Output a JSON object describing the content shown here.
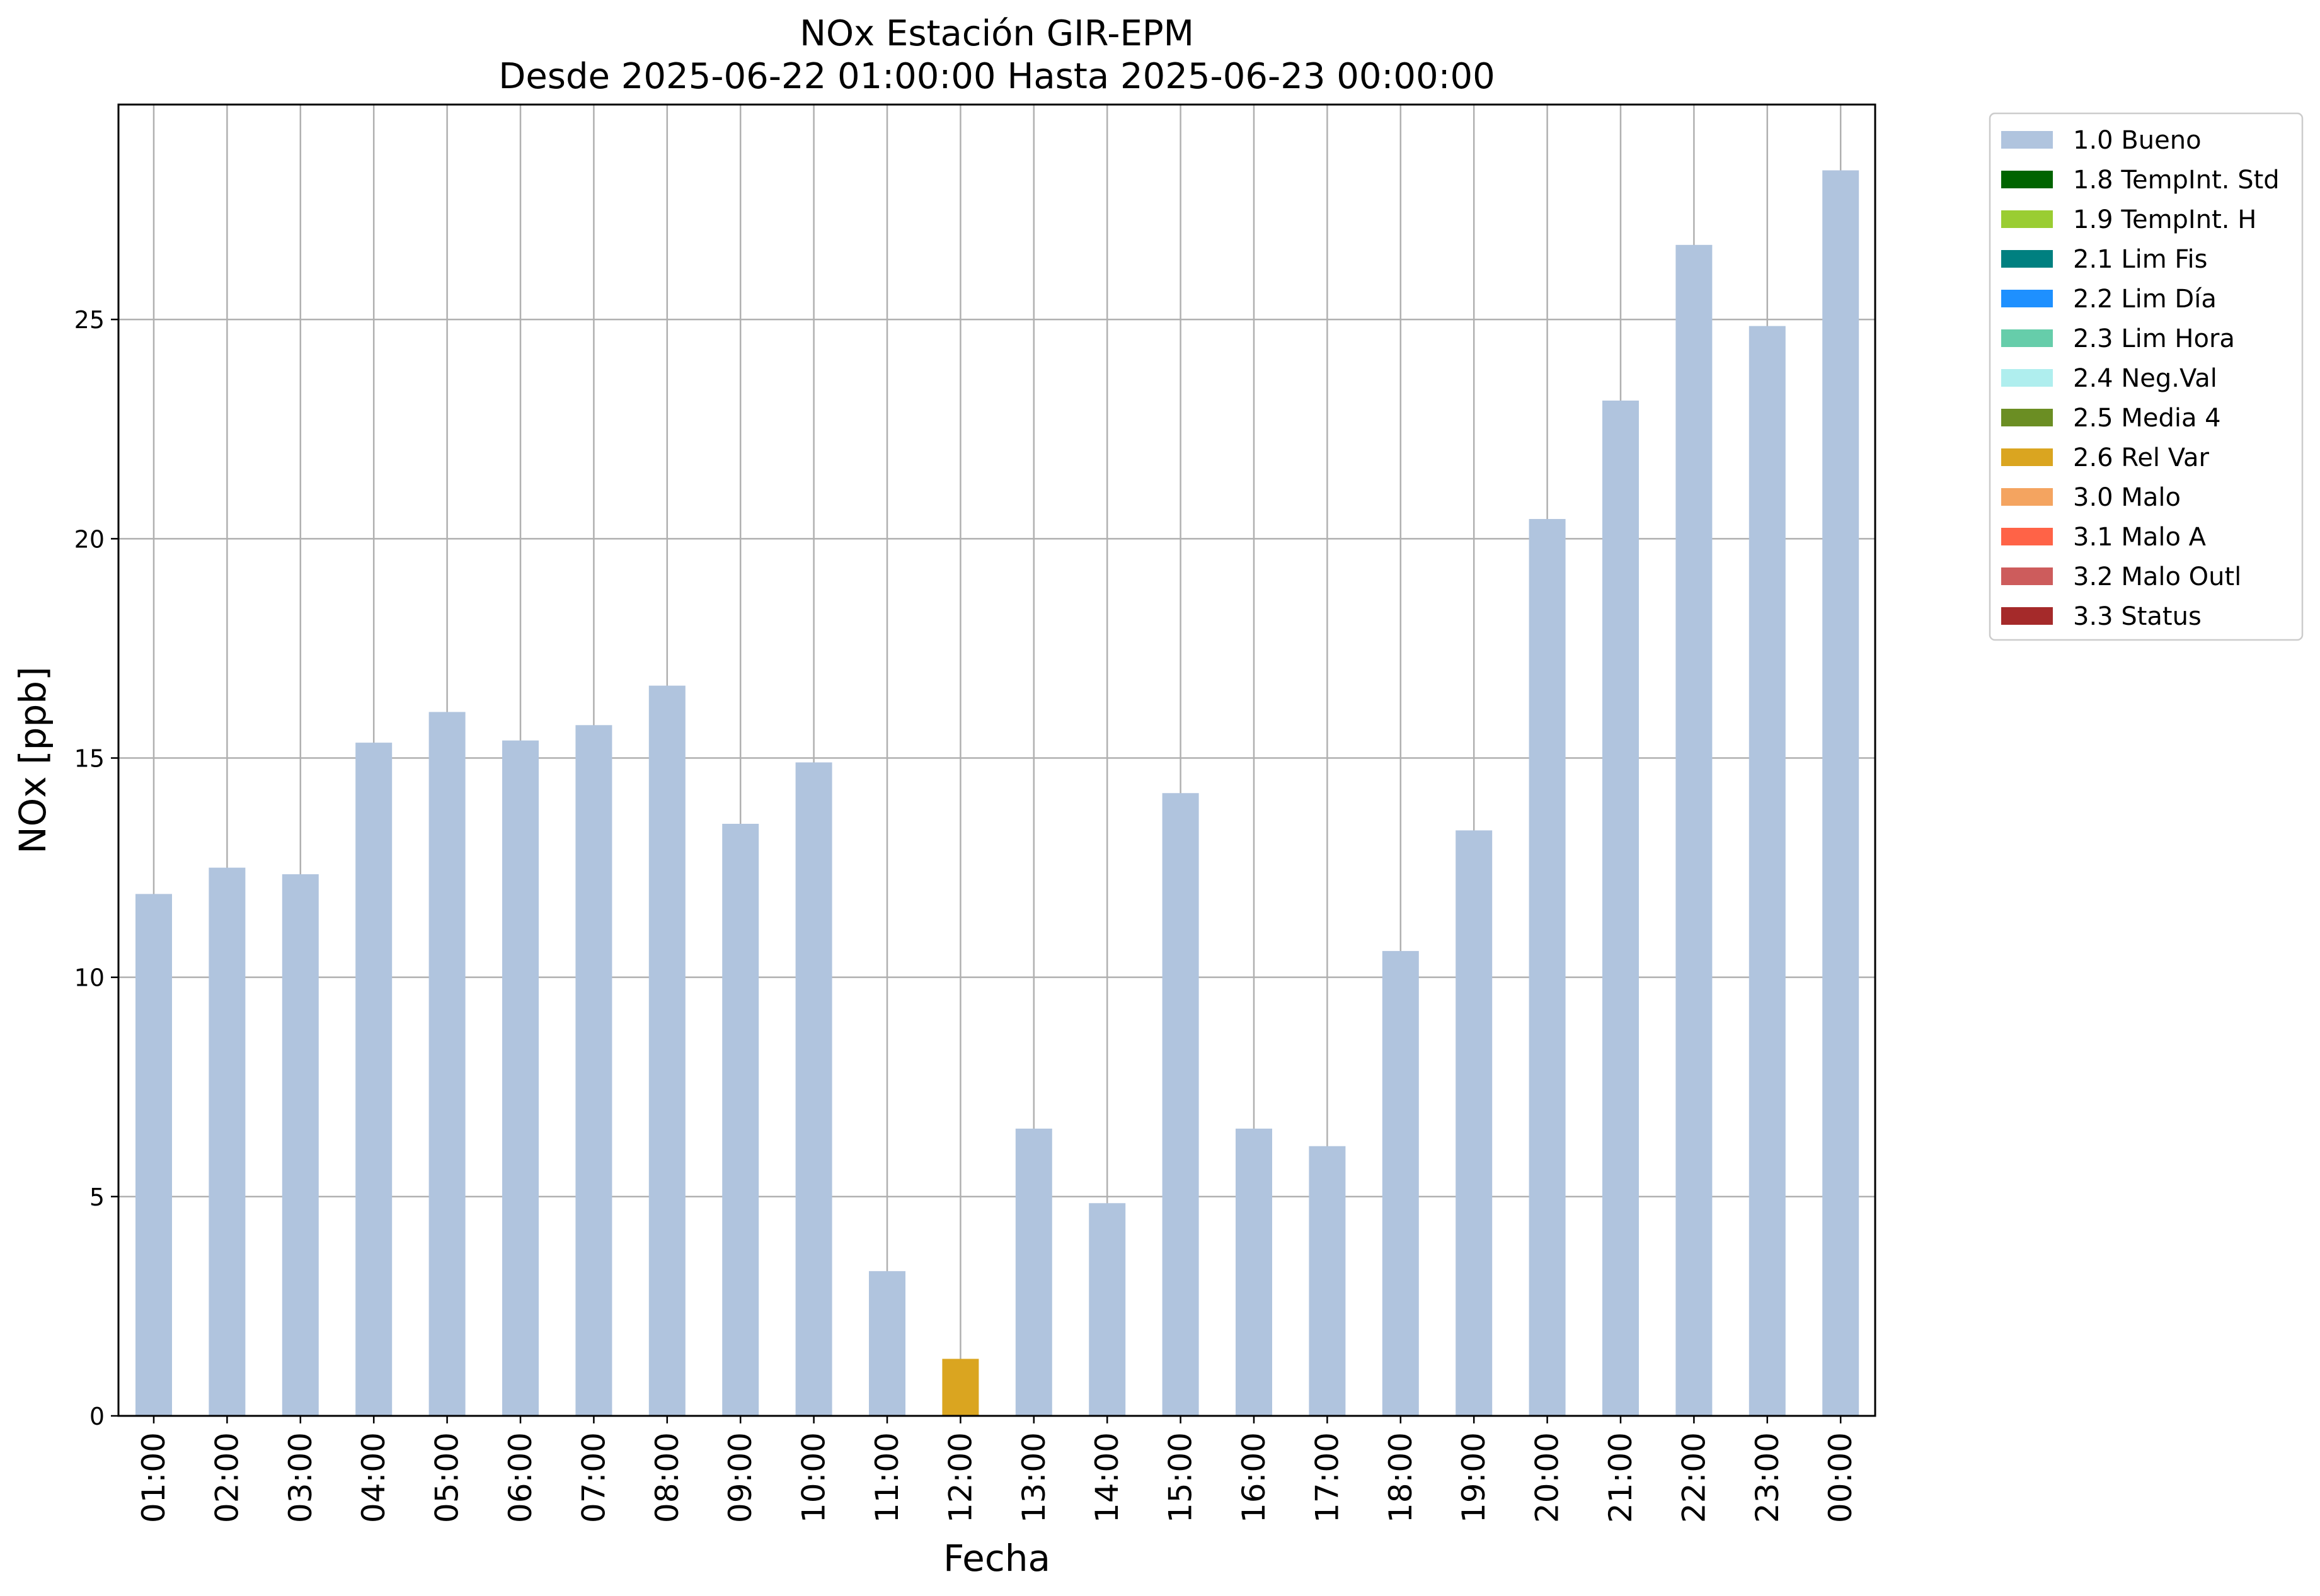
{
  "chart_data": {
    "type": "bar",
    "title": "NOx Estación GIR-EPM",
    "subtitle": "Desde 2025-06-22 01:00:00 Hasta 2025-06-23 00:00:00",
    "xlabel": "Fecha",
    "ylabel": "NOx [ppb]",
    "ylim": [
      0,
      29.9
    ],
    "yticks": [
      0,
      5,
      10,
      15,
      20,
      25
    ],
    "grid": true,
    "legend_position": "outside-top-right",
    "categories": [
      "01:00",
      "02:00",
      "03:00",
      "04:00",
      "05:00",
      "06:00",
      "07:00",
      "08:00",
      "09:00",
      "10:00",
      "11:00",
      "12:00",
      "13:00",
      "14:00",
      "15:00",
      "16:00",
      "17:00",
      "18:00",
      "19:00",
      "20:00",
      "21:00",
      "22:00",
      "23:00",
      "00:00"
    ],
    "values": [
      11.9,
      12.5,
      12.35,
      15.35,
      16.05,
      15.4,
      15.75,
      16.65,
      13.5,
      14.9,
      3.3,
      1.3,
      6.55,
      4.85,
      14.2,
      6.55,
      6.15,
      10.6,
      13.35,
      20.45,
      23.15,
      26.7,
      24.85,
      28.4
    ],
    "bar_flags": [
      "1.0 Bueno",
      "1.0 Bueno",
      "1.0 Bueno",
      "1.0 Bueno",
      "1.0 Bueno",
      "1.0 Bueno",
      "1.0 Bueno",
      "1.0 Bueno",
      "1.0 Bueno",
      "1.0 Bueno",
      "1.0 Bueno",
      "2.6 Rel Var",
      "1.0 Bueno",
      "1.0 Bueno",
      "1.0 Bueno",
      "1.0 Bueno",
      "1.0 Bueno",
      "1.0 Bueno",
      "1.0 Bueno",
      "1.0 Bueno",
      "1.0 Bueno",
      "1.0 Bueno",
      "1.0 Bueno",
      "1.0 Bueno"
    ],
    "legend": [
      {
        "label": "1.0 Bueno",
        "color": "#b0c4de"
      },
      {
        "label": "1.8 TempInt. Std",
        "color": "#006400"
      },
      {
        "label": "1.9 TempInt. H",
        "color": "#9acd32"
      },
      {
        "label": "2.1 Lim Fis",
        "color": "#008080"
      },
      {
        "label": "2.2 Lim Día",
        "color": "#1e90ff"
      },
      {
        "label": "2.3 Lim Hora",
        "color": "#66cdaa"
      },
      {
        "label": "2.4 Neg.Val",
        "color": "#afeeee"
      },
      {
        "label": "2.5 Media 4",
        "color": "#6b8e23"
      },
      {
        "label": "2.6 Rel Var",
        "color": "#daa520"
      },
      {
        "label": "3.0 Malo",
        "color": "#f4a460"
      },
      {
        "label": "3.1 Malo A",
        "color": "#ff6347"
      },
      {
        "label": "3.2 Malo Outl",
        "color": "#cd5c5c"
      },
      {
        "label": "3.3 Status",
        "color": "#a52a2a"
      }
    ]
  }
}
